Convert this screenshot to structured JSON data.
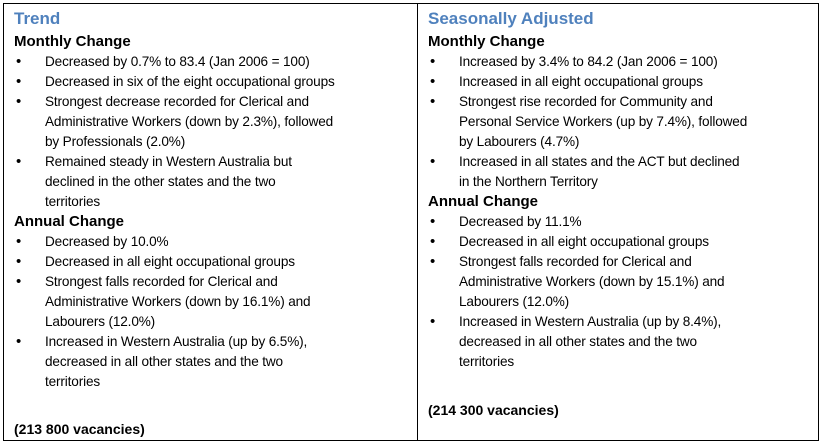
{
  "trend": {
    "title": "Trend",
    "monthly_heading": "Monthly Change",
    "monthly_items": [
      [
        "Decreased by 0.7% to 83.4 (Jan 2006 = 100)"
      ],
      [
        "Decreased in six of the eight occupational groups"
      ],
      [
        "Strongest decrease recorded for Clerical and",
        "Administrative Workers (down by 2.3%), followed",
        "by Professionals (2.0%)"
      ],
      [
        "Remained steady in Western Australia but",
        "declined in the other states and the two",
        "territories"
      ]
    ],
    "annual_heading": "Annual Change",
    "annual_items": [
      [
        "Decreased by 10.0%"
      ],
      [
        "Decreased in all eight occupational groups"
      ],
      [
        "Strongest falls recorded for Clerical and",
        "Administrative Workers (down by 16.1%) and",
        "Labourers (12.0%)"
      ],
      [
        "Increased in Western Australia (up by 6.5%),",
        "decreased in all other states and the two",
        "territories"
      ]
    ],
    "vacancies": "(213 800 vacancies)"
  },
  "seasonal": {
    "title": "Seasonally Adjusted",
    "monthly_heading": "Monthly Change",
    "monthly_items": [
      [
        "Increased by 3.4% to 84.2 (Jan 2006 = 100)"
      ],
      [
        "Increased in all eight occupational groups"
      ],
      [
        "Strongest rise recorded for Community and",
        "Personal Service Workers (up by 7.4%), followed",
        "by Labourers (4.7%)"
      ],
      [
        "Increased in all states and the ACT but declined",
        "in the Northern Territory"
      ]
    ],
    "annual_heading": "Annual Change",
    "annual_items": [
      [
        "Decreased by 11.1%"
      ],
      [
        "Decreased in all eight occupational groups"
      ],
      [
        "Strongest falls recorded for Clerical and",
        "Administrative Workers (down by 15.1%) and",
        "Labourers (12.0%)"
      ],
      [
        "Increased in Western Australia (up by 8.4%),",
        "decreased in all other states and the two",
        "territories"
      ]
    ],
    "vacancies": "(214 300 vacancies)"
  }
}
